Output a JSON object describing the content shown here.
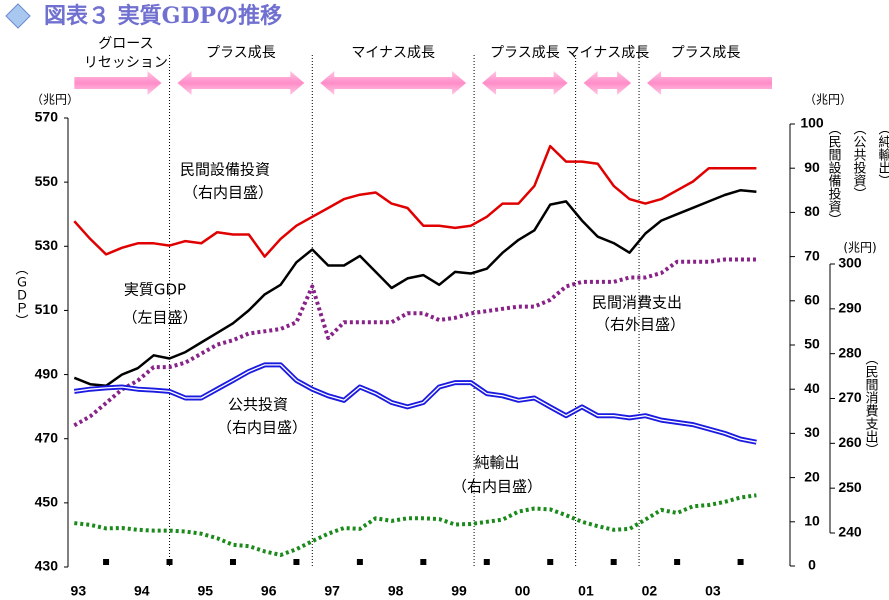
{
  "chart_data": {
    "type": "line",
    "title": "図表３ 実質GDPの推移",
    "x": [
      93,
      93.25,
      93.5,
      93.75,
      94,
      94.25,
      94.5,
      94.75,
      95,
      95.25,
      95.5,
      95.75,
      96,
      96.25,
      96.5,
      96.75,
      97,
      97.25,
      97.5,
      97.75,
      98,
      98.25,
      98.5,
      98.75,
      99,
      99.25,
      99.5,
      99.75,
      100,
      100.25,
      100.5,
      100.75,
      101,
      101.25,
      101.5,
      101.75,
      102,
      102.25,
      102.5,
      102.75,
      103,
      103.25,
      103.5,
      103.75
    ],
    "xlim": [
      92.9,
      104.2
    ],
    "xticks": [
      93,
      94,
      95,
      96,
      97,
      98,
      99,
      {
        "value": 100,
        "label": "00"
      },
      {
        "value": 101,
        "label": "01"
      },
      {
        "value": 102,
        "label": "02"
      },
      {
        "value": 103,
        "label": "03"
      }
    ],
    "ylim": [
      430,
      570
    ],
    "yticks": [
      430,
      450,
      470,
      490,
      510,
      530,
      550,
      570
    ],
    "y2lim": [
      0,
      100
    ],
    "y2ticks": [
      0,
      10,
      20,
      30,
      40,
      50,
      60,
      70,
      80,
      90,
      100
    ],
    "y3lim": [
      240,
      300
    ],
    "y3ticks": [
      240,
      250,
      260,
      270,
      280,
      290,
      300
    ],
    "ylabel": "（ＧＤＰ）",
    "yunit": "（兆円）",
    "y2label": [
      "（民間設備投資）",
      "（公共投資）",
      "（純輸出）"
    ],
    "y2unit": "（兆円）",
    "y3label": "（民間消費支出）",
    "y3unit": "(兆円)",
    "series": [
      {
        "name": "実質GDP",
        "note": "（左目盛）",
        "color": "#000000",
        "style": "solid",
        "axis": "y",
        "values": [
          489,
          487,
          486.5,
          490,
          492,
          496,
          495,
          497,
          500,
          503,
          506,
          510,
          515,
          518,
          525,
          529,
          524,
          524,
          527,
          522,
          517,
          520,
          521,
          518,
          522,
          521.5,
          523,
          528,
          532,
          535,
          543,
          544,
          538,
          533,
          531,
          528,
          534,
          538,
          540,
          542,
          544,
          546,
          547.5,
          547
        ]
      },
      {
        "name": "民間設備投資",
        "note": "（右内目盛）",
        "color": "#e00000",
        "style": "solid",
        "axis": "y2",
        "values": [
          78,
          74,
          70.5,
          72,
          73,
          73,
          72.5,
          73.5,
          73,
          75.5,
          75,
          75,
          70,
          74,
          77,
          79,
          81,
          83,
          84,
          84.5,
          82,
          81,
          77,
          77,
          76.5,
          77,
          79,
          82,
          82,
          86,
          95,
          91.5,
          91.5,
          91,
          86,
          83,
          82,
          83,
          85,
          87,
          90,
          90,
          90,
          90
        ]
      },
      {
        "name": "民間消費支出",
        "note": "（右外目盛）",
        "color": "#882288",
        "style": "dotted",
        "axis": "y3",
        "values": [
          264,
          266,
          269,
          272,
          274,
          277,
          277,
          278,
          280,
          282,
          283,
          284.5,
          285,
          285.5,
          287,
          295,
          283.5,
          287,
          287,
          287,
          287,
          289,
          289,
          287.5,
          288,
          289,
          289.5,
          290,
          290.5,
          290.5,
          292,
          295,
          296,
          296,
          296,
          297,
          297,
          298,
          300.5,
          300.5,
          300.5,
          301,
          301,
          301
        ]
      },
      {
        "name": "公共投資",
        "note": "（右内目盛）",
        "color": "#1a1ae0",
        "style": "double",
        "axis": "y2",
        "values": [
          39.5,
          40,
          40.3,
          40.5,
          40,
          39.8,
          39.5,
          38,
          38,
          40,
          42,
          44,
          45.5,
          45.5,
          42,
          40,
          38.5,
          37.5,
          40.5,
          39,
          37,
          36,
          37,
          40.5,
          41.5,
          41.5,
          39,
          38.5,
          37.5,
          38,
          36,
          34,
          36,
          34,
          34,
          33.5,
          34,
          33,
          32.5,
          32,
          31,
          30,
          28.7,
          28
        ]
      },
      {
        "name": "純輸出",
        "note": "（右内目盛）",
        "color": "#1a8a1a",
        "style": "dotted",
        "axis": "y2",
        "values": [
          9.7,
          9.3,
          8.5,
          8.6,
          8.2,
          8,
          8,
          7.8,
          7.3,
          6.3,
          4.8,
          4.5,
          3.3,
          2.5,
          3.8,
          5.6,
          7.3,
          8.6,
          8.4,
          10.8,
          10.2,
          10.8,
          10.8,
          10.6,
          9.4,
          9.5,
          10,
          10.5,
          12.3,
          13,
          12.8,
          11.5,
          10,
          9,
          8.2,
          8.4,
          10.5,
          12.7,
          12,
          13.5,
          13.8,
          14.5,
          15.5,
          16
        ]
      }
    ],
    "phase_boundaries": [
      94.5,
      96.75,
      99.3,
      100.9,
      101.9
    ],
    "phases": [
      {
        "label": [
          "グロース",
          "リセッション"
        ]
      },
      {
        "label": "プラス成長"
      },
      {
        "label": "マイナス成長"
      },
      {
        "label": "プラス成長"
      },
      {
        "label": "マイナス成長"
      },
      {
        "label": "プラス成長"
      }
    ]
  }
}
